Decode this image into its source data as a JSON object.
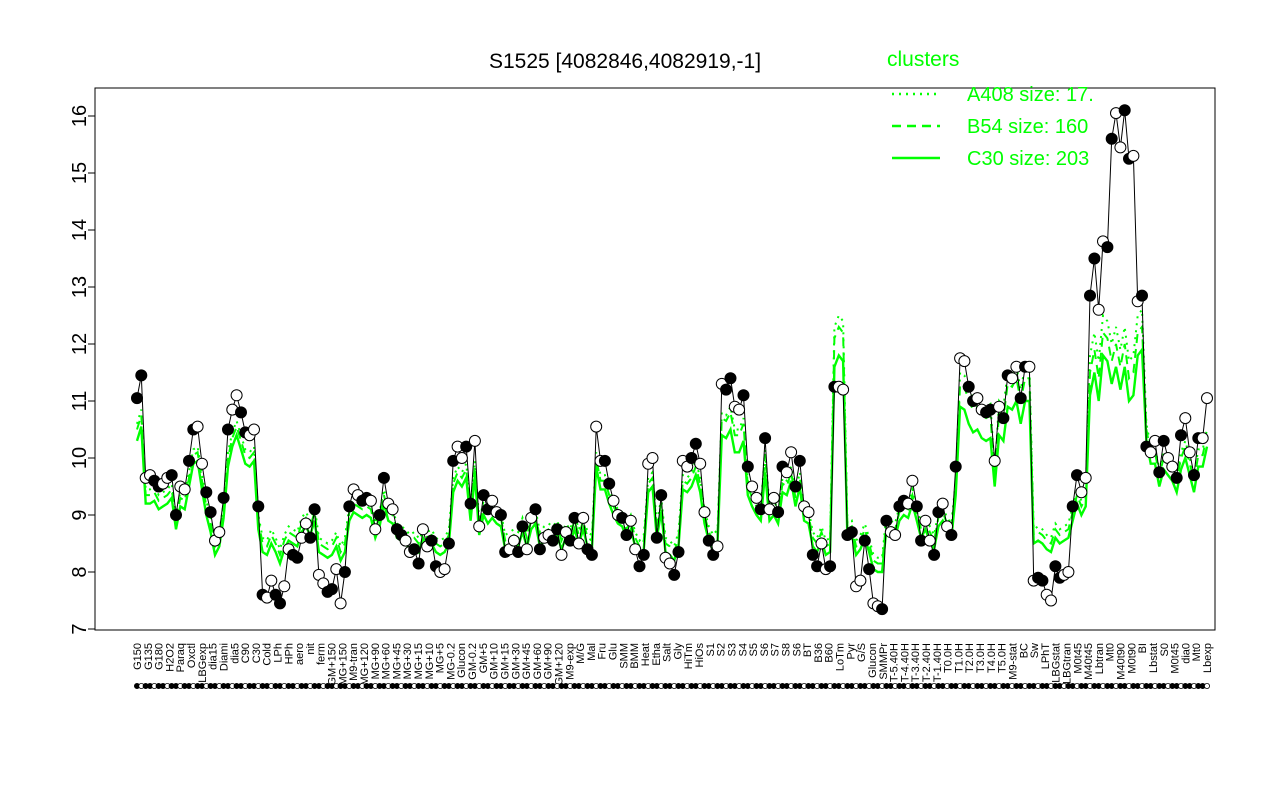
{
  "chart_data": {
    "type": "line",
    "title": "S1525 [4082846,4082919,-1]",
    "xlabel": "",
    "ylabel": "",
    "ylim": [
      7,
      16
    ],
    "yticks": [
      7,
      8,
      9,
      10,
      11,
      12,
      13,
      14,
      15,
      16
    ],
    "x_tick_labels": [
      "G150",
      "G135",
      "G180",
      "H2O2",
      "Paraq",
      "Oxctl",
      "LBGexp",
      "dia15",
      "Diami",
      "dia5",
      "C90",
      "C30",
      "Cold",
      "LPh",
      "HPh",
      "aero",
      "nit",
      "ferm",
      "GM+150",
      "MG+150",
      "M9-tran",
      "MG+120",
      "MG+90",
      "MG+60",
      "MG+45",
      "MG+30",
      "MG+15",
      "MG+10",
      "MG+5",
      "MG-0.2",
      "Glucon",
      "GM-0.2",
      "GM+5",
      "GM+10",
      "GM+15",
      "GM+30",
      "GM+45",
      "GM+60",
      "GM+90",
      "GM+120",
      "M9-exp",
      "M/G",
      "Mal",
      "Fru",
      "Glu",
      "SMM",
      "BMM",
      "Heat",
      "Etha",
      "Salt",
      "Gly",
      "HiTm",
      "HiOs",
      "S1",
      "S2",
      "S3",
      "S4",
      "S5",
      "S6",
      "S7",
      "S8",
      "S6",
      "BT",
      "B36",
      "B60",
      "LoTm",
      "Pyr",
      "G/S",
      "Glucon",
      "SMMPr",
      "T-5.40H",
      "T-4.40H",
      "T-3.40H",
      "T-2.40H",
      "T-1.40H",
      "T0.0H",
      "T1.0H",
      "T2.0H",
      "T3.0H",
      "T4.0H",
      "T5.0H",
      "M9-stat",
      "BC",
      "Sw",
      "LPhT",
      "LBGstat",
      "LBGtran",
      "M0t45",
      "M40t45",
      "Lbtran",
      "Mt0",
      "M40t90",
      "M0t90",
      "BI",
      "Lbstat",
      "S0",
      "M0t45",
      "dia0",
      "Mt0",
      "Lbexp"
    ],
    "legend": {
      "title": "clusters",
      "position": "top-right",
      "entries": [
        {
          "label": "A408 size: 17.",
          "style": "dotted"
        },
        {
          "label": "B54 size: 160",
          "style": "dashed"
        },
        {
          "label": "C30 size: 203",
          "style": "solid"
        }
      ]
    },
    "colors": {
      "series": "#000000",
      "cluster": "#00ff00"
    },
    "observations": [
      11.05,
      11.45,
      9.65,
      9.7,
      9.6,
      9.5,
      9.55,
      9.65,
      9.7,
      9.0,
      9.5,
      9.45,
      9.95,
      10.5,
      10.55,
      9.9,
      9.4,
      9.05,
      8.55,
      8.7,
      9.3,
      10.5,
      10.85,
      11.1,
      10.8,
      10.45,
      10.4,
      10.5,
      9.15,
      7.6,
      7.55,
      7.85,
      7.6,
      7.45,
      7.75,
      8.4,
      8.3,
      8.25,
      8.6,
      8.85,
      8.6,
      9.1,
      7.95,
      7.8,
      7.65,
      7.7,
      8.05,
      7.45,
      8.0,
      9.15,
      9.45,
      9.35,
      9.25,
      9.3,
      9.25,
      8.75,
      9.0,
      9.65,
      9.2,
      9.1,
      8.75,
      8.65,
      8.55,
      8.35,
      8.4,
      8.15,
      8.75,
      8.45,
      8.55,
      8.1,
      8.0,
      8.05,
      8.5,
      9.95,
      10.2,
      10.0,
      10.2,
      9.2,
      10.3,
      8.8,
      9.35,
      9.1,
      9.25,
      9.05,
      9.0,
      8.35,
      8.4,
      8.55,
      8.35,
      8.8,
      8.4,
      8.95,
      9.1,
      8.4,
      8.6,
      8.65,
      8.55,
      8.75,
      8.3,
      8.7,
      8.55,
      8.95,
      8.5,
      8.95,
      8.4,
      8.3,
      10.55,
      9.95,
      9.95,
      9.55,
      9.25,
      9.0,
      8.95,
      8.65,
      8.9,
      8.4,
      8.1,
      8.3,
      9.9,
      10.0,
      8.6,
      9.35,
      8.25,
      8.15,
      7.95,
      8.35,
      9.95,
      9.85,
      10.0,
      10.25,
      9.9,
      9.05,
      8.55,
      8.3,
      8.45,
      11.3,
      11.2,
      11.4,
      10.9,
      10.85,
      11.1,
      9.85,
      9.5,
      9.3,
      9.1,
      10.35,
      9.1,
      9.3,
      9.05,
      9.85,
      9.75,
      10.1,
      9.5,
      9.95,
      9.15,
      9.05,
      8.3,
      8.1,
      8.5,
      8.05,
      8.1,
      11.25,
      11.25,
      11.2,
      8.65,
      8.7,
      7.75,
      7.85,
      8.55,
      8.05,
      7.45,
      7.4,
      7.35,
      8.9,
      8.7,
      8.65,
      9.15,
      9.25,
      9.2,
      9.6,
      9.15,
      8.55,
      8.9,
      8.55,
      8.3,
      9.05,
      9.2,
      8.8,
      8.65,
      9.85,
      11.75,
      11.7,
      11.25,
      11.0,
      11.05,
      10.85,
      10.8,
      10.85,
      9.95,
      10.9,
      10.7,
      11.45,
      11.4,
      11.6,
      11.05,
      11.6,
      11.6,
      7.85,
      7.9,
      7.85,
      7.6,
      7.5,
      8.1,
      7.9,
      7.95,
      8.0,
      9.15,
      9.7,
      9.4,
      9.65,
      12.85,
      13.5,
      12.6,
      13.8,
      13.7,
      15.6,
      16.05,
      15.45,
      16.1,
      15.25,
      15.3,
      12.75,
      12.85,
      10.2,
      10.1,
      10.3,
      9.75,
      10.3,
      10.0,
      9.85,
      9.65,
      10.4,
      10.7,
      10.1,
      9.7,
      10.35,
      10.35,
      11.05
    ],
    "clusters": [
      {
        "name": "C30",
        "style": "solid",
        "values": [
          10.3,
          10.55,
          9.2,
          9.2,
          9.25,
          9.1,
          9.15,
          9.2,
          9.3,
          8.75,
          9.15,
          9.1,
          9.5,
          9.9,
          9.95,
          9.45,
          9.0,
          8.7,
          8.3,
          8.45,
          8.95,
          9.85,
          10.2,
          10.4,
          10.15,
          9.9,
          9.85,
          9.95,
          8.75,
          8.35,
          8.3,
          8.5,
          8.35,
          8.15,
          8.4,
          8.55,
          8.5,
          8.45,
          8.7,
          8.8,
          8.65,
          8.9,
          8.35,
          8.3,
          8.25,
          8.3,
          8.45,
          8.2,
          8.35,
          8.9,
          9.05,
          9.0,
          8.95,
          9.0,
          8.95,
          8.6,
          8.8,
          9.2,
          8.9,
          8.85,
          8.6,
          8.55,
          8.5,
          8.4,
          8.45,
          8.35,
          8.6,
          8.45,
          8.5,
          8.35,
          8.3,
          8.35,
          8.5,
          9.4,
          9.6,
          9.5,
          9.65,
          8.9,
          9.7,
          8.65,
          9.0,
          8.85,
          8.95,
          8.85,
          8.8,
          8.4,
          8.45,
          8.5,
          8.45,
          8.7,
          8.45,
          8.75,
          8.85,
          8.45,
          8.55,
          8.6,
          8.55,
          8.65,
          8.4,
          8.6,
          8.5,
          8.75,
          8.5,
          8.75,
          8.45,
          8.4,
          9.85,
          9.45,
          9.45,
          9.2,
          9.0,
          8.85,
          8.8,
          8.6,
          8.75,
          8.45,
          8.3,
          8.4,
          9.4,
          9.5,
          8.6,
          9.05,
          8.35,
          8.3,
          8.2,
          8.45,
          9.45,
          9.4,
          9.5,
          9.7,
          9.4,
          8.85,
          8.55,
          8.4,
          8.5,
          10.4,
          10.35,
          10.5,
          10.1,
          10.1,
          10.3,
          9.35,
          9.15,
          9.0,
          8.9,
          9.75,
          8.9,
          9.0,
          8.85,
          9.4,
          9.35,
          9.6,
          9.15,
          9.5,
          8.9,
          8.85,
          8.45,
          8.35,
          8.55,
          8.3,
          8.35,
          11.6,
          11.8,
          11.7,
          8.6,
          8.65,
          8.3,
          8.4,
          8.6,
          8.35,
          8.05,
          8.0,
          8.0,
          8.75,
          8.65,
          8.6,
          8.9,
          9.0,
          8.95,
          9.2,
          8.9,
          8.6,
          8.75,
          8.55,
          8.4,
          8.8,
          8.9,
          8.7,
          8.6,
          9.35,
          10.9,
          10.85,
          10.6,
          10.45,
          10.5,
          10.35,
          10.3,
          10.35,
          9.5,
          10.4,
          10.3,
          10.9,
          10.85,
          11.0,
          10.6,
          11.0,
          11.0,
          8.5,
          8.55,
          8.5,
          8.4,
          8.35,
          8.6,
          8.5,
          8.55,
          8.6,
          8.9,
          9.2,
          9.0,
          9.15,
          11.1,
          11.5,
          11.0,
          11.8,
          11.7,
          11.3,
          11.6,
          11.2,
          11.6,
          11.0,
          11.1,
          11.8,
          11.9,
          10.3,
          9.9,
          9.9,
          9.5,
          9.8,
          9.7,
          9.6,
          9.4,
          9.8,
          10.0,
          9.7,
          9.4,
          9.85,
          9.85,
          10.2
        ]
      },
      {
        "name": "B54",
        "style": "dashed",
        "values": [
          10.5,
          10.75,
          9.35,
          9.35,
          9.4,
          9.25,
          9.3,
          9.35,
          9.45,
          8.9,
          9.3,
          9.25,
          9.65,
          10.05,
          10.1,
          9.6,
          9.15,
          8.85,
          8.45,
          8.6,
          9.1,
          10.0,
          10.35,
          10.55,
          10.3,
          10.05,
          10.0,
          10.1,
          8.9,
          8.5,
          8.45,
          8.65,
          8.5,
          8.3,
          8.55,
          8.7,
          8.65,
          8.6,
          8.85,
          8.95,
          8.8,
          9.05,
          8.5,
          8.45,
          8.4,
          8.45,
          8.6,
          8.35,
          8.5,
          9.05,
          9.2,
          9.15,
          9.1,
          9.15,
          9.1,
          8.75,
          8.95,
          9.35,
          9.05,
          9.0,
          8.75,
          8.7,
          8.65,
          8.55,
          8.6,
          8.5,
          8.75,
          8.6,
          8.65,
          8.5,
          8.45,
          8.5,
          8.65,
          9.55,
          9.75,
          9.65,
          9.8,
          9.05,
          9.85,
          8.8,
          9.15,
          9.0,
          9.1,
          9.0,
          8.95,
          8.55,
          8.6,
          8.65,
          8.6,
          8.85,
          8.6,
          8.9,
          9.0,
          8.6,
          8.7,
          8.75,
          8.7,
          8.8,
          8.55,
          8.75,
          8.65,
          8.9,
          8.65,
          8.9,
          8.6,
          8.55,
          10.0,
          9.6,
          9.6,
          9.35,
          9.15,
          9.0,
          8.95,
          8.75,
          8.9,
          8.6,
          8.45,
          8.55,
          9.55,
          9.65,
          8.75,
          9.2,
          8.5,
          8.45,
          8.35,
          8.6,
          9.6,
          9.55,
          9.65,
          9.85,
          9.55,
          9.0,
          8.7,
          8.55,
          8.65,
          10.7,
          10.65,
          10.8,
          10.4,
          10.4,
          10.6,
          9.5,
          9.3,
          9.15,
          9.05,
          10.05,
          9.05,
          9.15,
          9.0,
          9.55,
          9.5,
          9.75,
          9.3,
          9.65,
          9.05,
          9.0,
          8.6,
          8.5,
          8.7,
          8.45,
          8.5,
          12.1,
          12.3,
          12.2,
          8.75,
          8.8,
          8.45,
          8.55,
          8.75,
          8.5,
          8.2,
          8.15,
          8.15,
          8.9,
          8.8,
          8.75,
          9.05,
          9.15,
          9.1,
          9.35,
          9.05,
          8.75,
          8.9,
          8.7,
          8.55,
          8.95,
          9.05,
          8.85,
          8.75,
          9.5,
          11.3,
          11.25,
          11.0,
          10.85,
          10.9,
          10.75,
          10.7,
          10.75,
          9.65,
          10.8,
          10.7,
          11.3,
          11.25,
          11.4,
          11.0,
          11.4,
          11.4,
          8.65,
          8.7,
          8.65,
          8.55,
          8.5,
          8.75,
          8.65,
          8.7,
          8.75,
          9.05,
          9.35,
          9.15,
          9.3,
          11.5,
          11.9,
          11.4,
          12.2,
          12.1,
          11.7,
          12.0,
          11.6,
          12.0,
          11.4,
          11.5,
          12.2,
          12.3,
          10.5,
          10.1,
          10.1,
          9.7,
          10.0,
          9.9,
          9.8,
          9.6,
          10.0,
          10.2,
          9.9,
          9.6,
          10.05,
          10.05,
          10.4
        ]
      },
      {
        "name": "A408",
        "style": "dotted",
        "values": [
          10.6,
          10.85,
          9.45,
          9.45,
          9.5,
          9.35,
          9.4,
          9.45,
          9.55,
          9.0,
          9.4,
          9.35,
          9.75,
          10.15,
          10.2,
          9.7,
          9.25,
          8.95,
          8.55,
          8.7,
          9.2,
          10.1,
          10.45,
          10.65,
          10.4,
          10.15,
          10.1,
          10.2,
          9.0,
          8.6,
          8.55,
          8.75,
          8.6,
          8.4,
          8.65,
          8.8,
          8.75,
          8.7,
          8.95,
          9.05,
          8.9,
          9.15,
          8.6,
          8.55,
          8.5,
          8.55,
          8.7,
          8.45,
          8.6,
          9.15,
          9.3,
          9.25,
          9.2,
          9.25,
          9.2,
          8.85,
          9.05,
          9.45,
          9.15,
          9.1,
          8.85,
          8.8,
          8.75,
          8.65,
          8.7,
          8.6,
          8.85,
          8.7,
          8.75,
          8.6,
          8.55,
          8.6,
          8.75,
          9.65,
          9.85,
          9.75,
          9.9,
          9.15,
          9.95,
          8.9,
          9.25,
          9.1,
          9.2,
          9.1,
          9.05,
          8.65,
          8.7,
          8.75,
          8.7,
          8.95,
          8.7,
          9.0,
          9.1,
          8.7,
          8.8,
          8.85,
          8.8,
          8.9,
          8.65,
          8.85,
          8.75,
          9.0,
          8.75,
          9.0,
          8.7,
          8.65,
          10.1,
          9.7,
          9.7,
          9.45,
          9.25,
          9.1,
          9.05,
          8.85,
          9.0,
          8.7,
          8.55,
          8.65,
          9.65,
          9.75,
          8.85,
          9.3,
          8.6,
          8.55,
          8.45,
          8.7,
          9.7,
          9.65,
          9.75,
          9.95,
          9.65,
          9.1,
          8.8,
          8.65,
          8.75,
          10.8,
          10.75,
          10.9,
          10.5,
          10.5,
          10.7,
          9.6,
          9.4,
          9.25,
          9.15,
          10.15,
          9.15,
          9.25,
          9.1,
          9.65,
          9.6,
          9.85,
          9.4,
          9.75,
          9.15,
          9.1,
          8.7,
          8.6,
          8.8,
          8.55,
          8.6,
          12.3,
          12.5,
          12.4,
          8.85,
          8.9,
          8.55,
          8.65,
          8.85,
          8.6,
          8.3,
          8.25,
          8.25,
          9.0,
          8.9,
          8.85,
          9.15,
          9.25,
          9.2,
          9.45,
          9.15,
          8.85,
          9.0,
          8.8,
          8.65,
          9.05,
          9.15,
          8.95,
          8.85,
          9.6,
          11.5,
          11.45,
          11.2,
          11.05,
          11.1,
          10.95,
          10.9,
          10.95,
          9.75,
          11.0,
          10.9,
          11.5,
          11.45,
          11.6,
          11.2,
          11.6,
          11.6,
          8.75,
          8.8,
          8.75,
          8.65,
          8.6,
          8.85,
          8.75,
          8.8,
          8.85,
          9.15,
          9.45,
          9.25,
          9.4,
          11.8,
          12.2,
          11.7,
          12.5,
          12.4,
          12.0,
          12.3,
          11.9,
          12.3,
          11.7,
          11.8,
          12.5,
          12.6,
          10.6,
          10.2,
          10.2,
          9.8,
          10.1,
          10.0,
          9.9,
          9.7,
          10.1,
          10.3,
          10.0,
          9.7,
          10.15,
          10.15,
          10.5
        ]
      }
    ]
  }
}
